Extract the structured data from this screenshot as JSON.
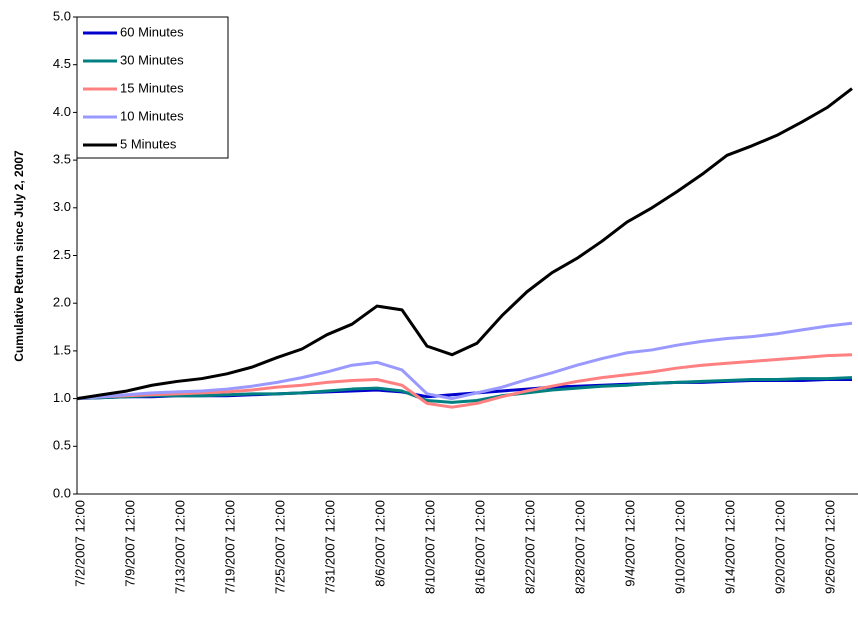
{
  "chart_data": {
    "type": "line",
    "y_label": "Cumulative Return since July 2, 2007",
    "categories": [
      "7/2/2007 12:00",
      null,
      "7/9/2007 12:00",
      null,
      "7/13/2007 12:00",
      null,
      "7/19/2007 12:00",
      null,
      "7/25/2007 12:00",
      null,
      "7/31/2007 12:00",
      null,
      "8/6/2007 12:00",
      null,
      "8/10/2007 12:00",
      null,
      "8/16/2007 12:00",
      null,
      "8/22/2007 12:00",
      null,
      "8/28/2007 12:00",
      null,
      "9/4/2007 12:00",
      null,
      "9/10/2007 12:00",
      null,
      "9/14/2007 12:00",
      null,
      "9/20/2007 12:00",
      null,
      "9/26/2007 12:00",
      null
    ],
    "series": [
      {
        "name": "60 Minutes",
        "color": "#0000cc",
        "values": [
          1.0,
          1.01,
          1.02,
          1.02,
          1.03,
          1.03,
          1.03,
          1.04,
          1.05,
          1.06,
          1.07,
          1.08,
          1.09,
          1.07,
          1.02,
          1.04,
          1.06,
          1.08,
          1.1,
          1.12,
          1.13,
          1.14,
          1.15,
          1.16,
          1.17,
          1.17,
          1.18,
          1.19,
          1.19,
          1.19,
          1.2,
          1.2
        ]
      },
      {
        "name": "30 Minutes",
        "color": "#008080",
        "values": [
          1.0,
          1.01,
          1.02,
          1.03,
          1.03,
          1.03,
          1.04,
          1.05,
          1.05,
          1.06,
          1.08,
          1.1,
          1.11,
          1.08,
          0.98,
          0.96,
          0.98,
          1.03,
          1.06,
          1.09,
          1.11,
          1.13,
          1.14,
          1.16,
          1.17,
          1.18,
          1.19,
          1.2,
          1.2,
          1.21,
          1.21,
          1.22
        ]
      },
      {
        "name": "15 Minutes",
        "color": "#ff8080",
        "values": [
          1.0,
          1.02,
          1.03,
          1.04,
          1.05,
          1.06,
          1.07,
          1.09,
          1.12,
          1.14,
          1.17,
          1.19,
          1.2,
          1.14,
          0.95,
          0.91,
          0.95,
          1.02,
          1.08,
          1.13,
          1.18,
          1.22,
          1.25,
          1.28,
          1.32,
          1.35,
          1.37,
          1.39,
          1.41,
          1.43,
          1.45,
          1.46
        ]
      },
      {
        "name": "10 Minutes",
        "color": "#9999ff",
        "values": [
          1.0,
          1.02,
          1.04,
          1.06,
          1.07,
          1.08,
          1.1,
          1.13,
          1.17,
          1.22,
          1.28,
          1.35,
          1.38,
          1.3,
          1.05,
          1.0,
          1.06,
          1.12,
          1.2,
          1.27,
          1.35,
          1.42,
          1.48,
          1.51,
          1.56,
          1.6,
          1.63,
          1.65,
          1.68,
          1.72,
          1.76,
          1.79
        ]
      },
      {
        "name": "5 Minutes",
        "color": "#000000",
        "values": [
          1.0,
          1.04,
          1.08,
          1.14,
          1.18,
          1.21,
          1.26,
          1.33,
          1.43,
          1.52,
          1.67,
          1.78,
          1.97,
          1.93,
          1.55,
          1.46,
          1.58,
          1.87,
          2.12,
          2.32,
          2.47,
          2.65,
          2.85,
          3.0,
          3.17,
          3.35,
          3.55,
          3.65,
          3.76,
          3.9,
          4.05,
          4.25
        ]
      }
    ],
    "ylim": [
      0,
      5
    ],
    "yticks": [
      {
        "value": 0,
        "label": "0.0"
      },
      0.5,
      {
        "value": 1,
        "label": "1.0"
      },
      1.5,
      {
        "value": 2,
        "label": "2.0"
      },
      2.5,
      {
        "value": 3,
        "label": "3.0"
      },
      3.5,
      {
        "value": 4,
        "label": "4.0"
      },
      4.5,
      {
        "value": 5,
        "label": "5.0"
      }
    ],
    "legend": "upper-left"
  }
}
